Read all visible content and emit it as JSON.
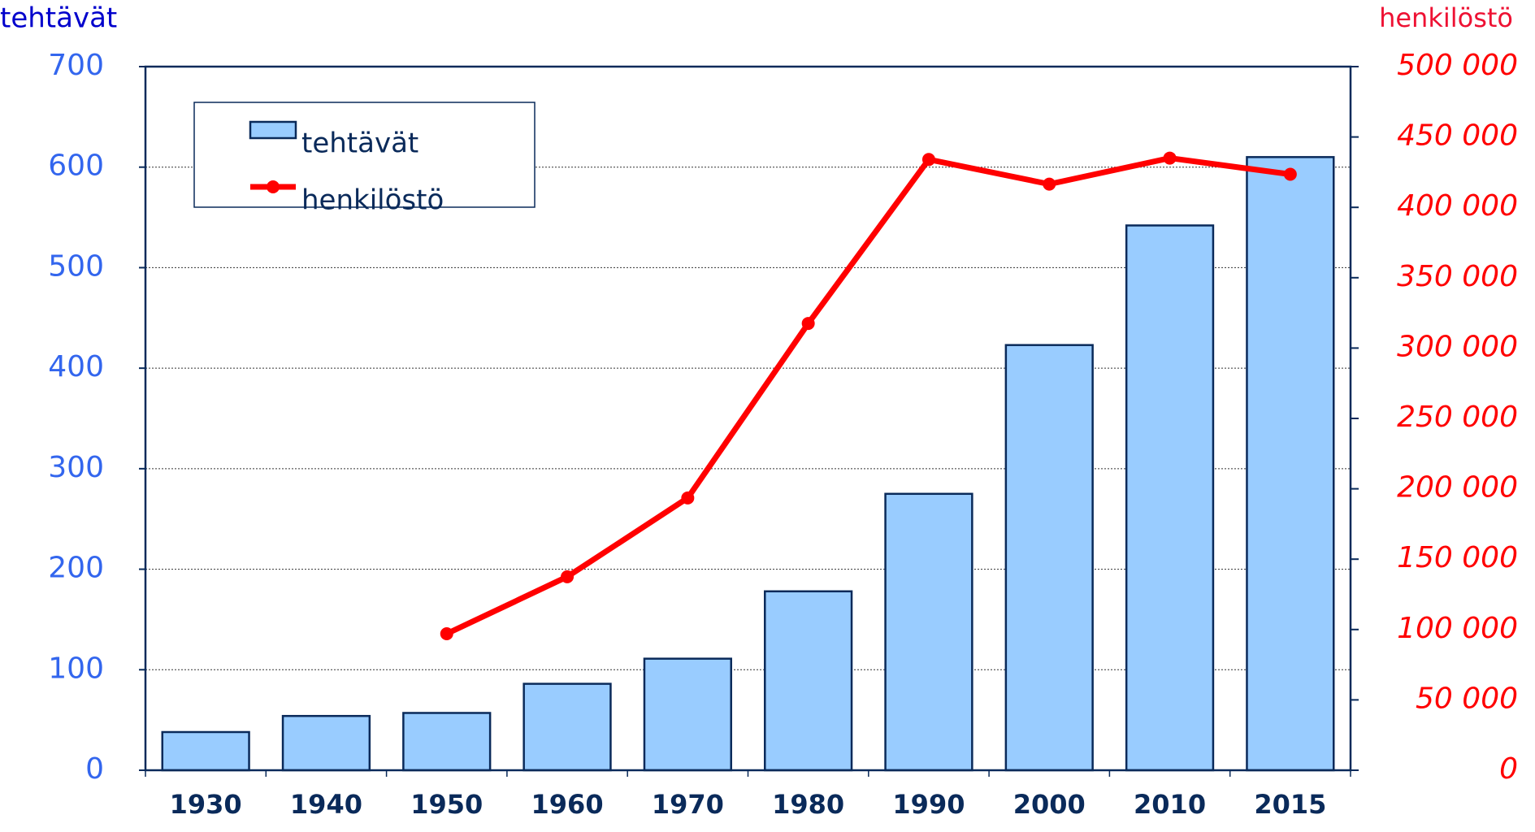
{
  "chart_data": {
    "type": "bar_line",
    "y_label": "tehtävät",
    "y2_label": "henkilöstö",
    "categories": [
      "1930",
      "1940",
      "1950",
      "1960",
      "1970",
      "1980",
      "1990",
      "2000",
      "2010",
      "2015"
    ],
    "series": [
      {
        "name": "tehtävät",
        "type": "bar",
        "color": "#99ccff",
        "values": [
          38,
          54,
          57,
          86,
          111,
          178,
          275,
          423,
          542,
          610
        ]
      },
      {
        "name": "henkilöstö",
        "type": "line",
        "axis": "y2",
        "color": "#ff0000",
        "values": [
          null,
          null,
          97000,
          137500,
          193500,
          317500,
          434000,
          416500,
          435000,
          423500
        ]
      }
    ],
    "ylim": [
      0,
      700
    ],
    "yticks": [
      0,
      100,
      200,
      300,
      400,
      500,
      600,
      700
    ],
    "y2lim": [
      0,
      500000
    ],
    "y2ticks": [
      0,
      {
        "value": 50000,
        "label": "50 000"
      },
      {
        "value": 100000,
        "label": "100 000"
      },
      {
        "value": 150000,
        "label": "150 000"
      },
      {
        "value": 200000,
        "label": "200 000"
      },
      {
        "value": 250000,
        "label": "250 000"
      },
      {
        "value": 300000,
        "label": "300 000"
      },
      {
        "value": 350000,
        "label": "350 000"
      },
      {
        "value": 400000,
        "label": "400 000"
      },
      {
        "value": 450000,
        "label": "450 000"
      },
      {
        "value": 500000,
        "label": "500 000"
      }
    ],
    "grid": true,
    "legend": "upper left"
  }
}
